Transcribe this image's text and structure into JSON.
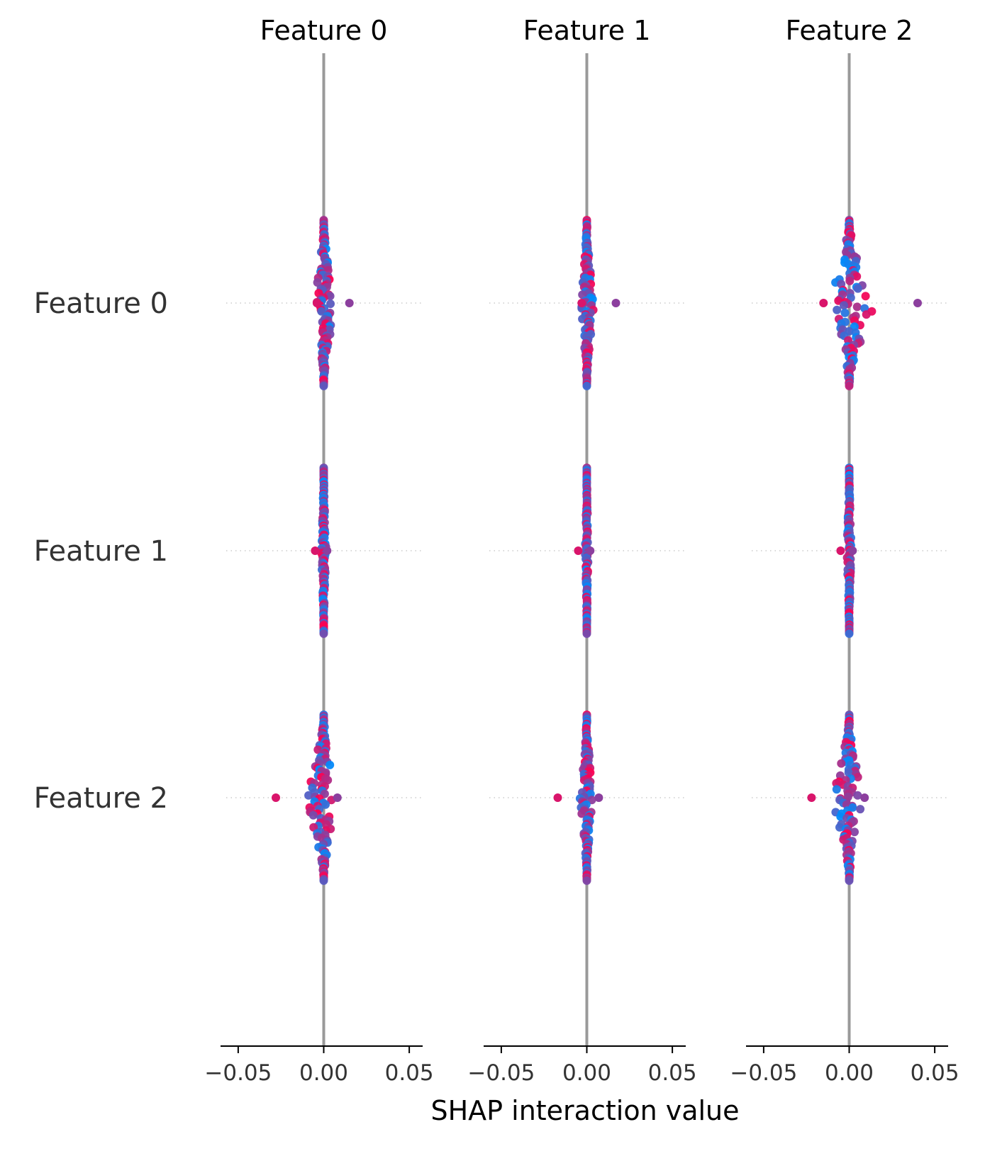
{
  "chart_data": {
    "type": "scatter",
    "subtype": "shap-interaction-beeswarm-matrix",
    "columns": [
      "Feature 0",
      "Feature 1",
      "Feature 2"
    ],
    "rows": [
      "Feature 0",
      "Feature 1",
      "Feature 2"
    ],
    "xlabel": "SHAP interaction value",
    "xlim": [
      -0.057,
      0.057
    ],
    "xticks": [
      -0.05,
      0.0,
      0.05
    ],
    "xtick_labels": [
      "−0.05",
      "0.00",
      "0.05"
    ],
    "colormap": [
      "#008bfb",
      "#ff0051"
    ],
    "zero_line_color": "#999999",
    "grid": false,
    "row_guides": "dotted",
    "cells": [
      {
        "row": 0,
        "col": 0,
        "min": -0.004,
        "max": 0.015,
        "spread": 0.006,
        "skew": 0.35
      },
      {
        "row": 0,
        "col": 1,
        "min": -0.003,
        "max": 0.017,
        "spread": 0.004,
        "skew": 0.2
      },
      {
        "row": 0,
        "col": 2,
        "min": -0.015,
        "max": 0.04,
        "spread": 0.012,
        "skew": 0.55
      },
      {
        "row": 1,
        "col": 0,
        "min": -0.005,
        "max": 0.002,
        "spread": 0.0015,
        "skew": 0.0
      },
      {
        "row": 1,
        "col": 1,
        "min": -0.005,
        "max": 0.002,
        "spread": 0.001,
        "skew": 0.0
      },
      {
        "row": 1,
        "col": 2,
        "min": -0.005,
        "max": 0.002,
        "spread": 0.0015,
        "skew": 0.0
      },
      {
        "row": 2,
        "col": 0,
        "min": -0.028,
        "max": 0.008,
        "spread": 0.009,
        "skew": -0.5
      },
      {
        "row": 2,
        "col": 1,
        "min": -0.017,
        "max": 0.007,
        "spread": 0.004,
        "skew": -0.3
      },
      {
        "row": 2,
        "col": 2,
        "min": -0.022,
        "max": 0.009,
        "spread": 0.009,
        "skew": -0.5
      }
    ]
  }
}
